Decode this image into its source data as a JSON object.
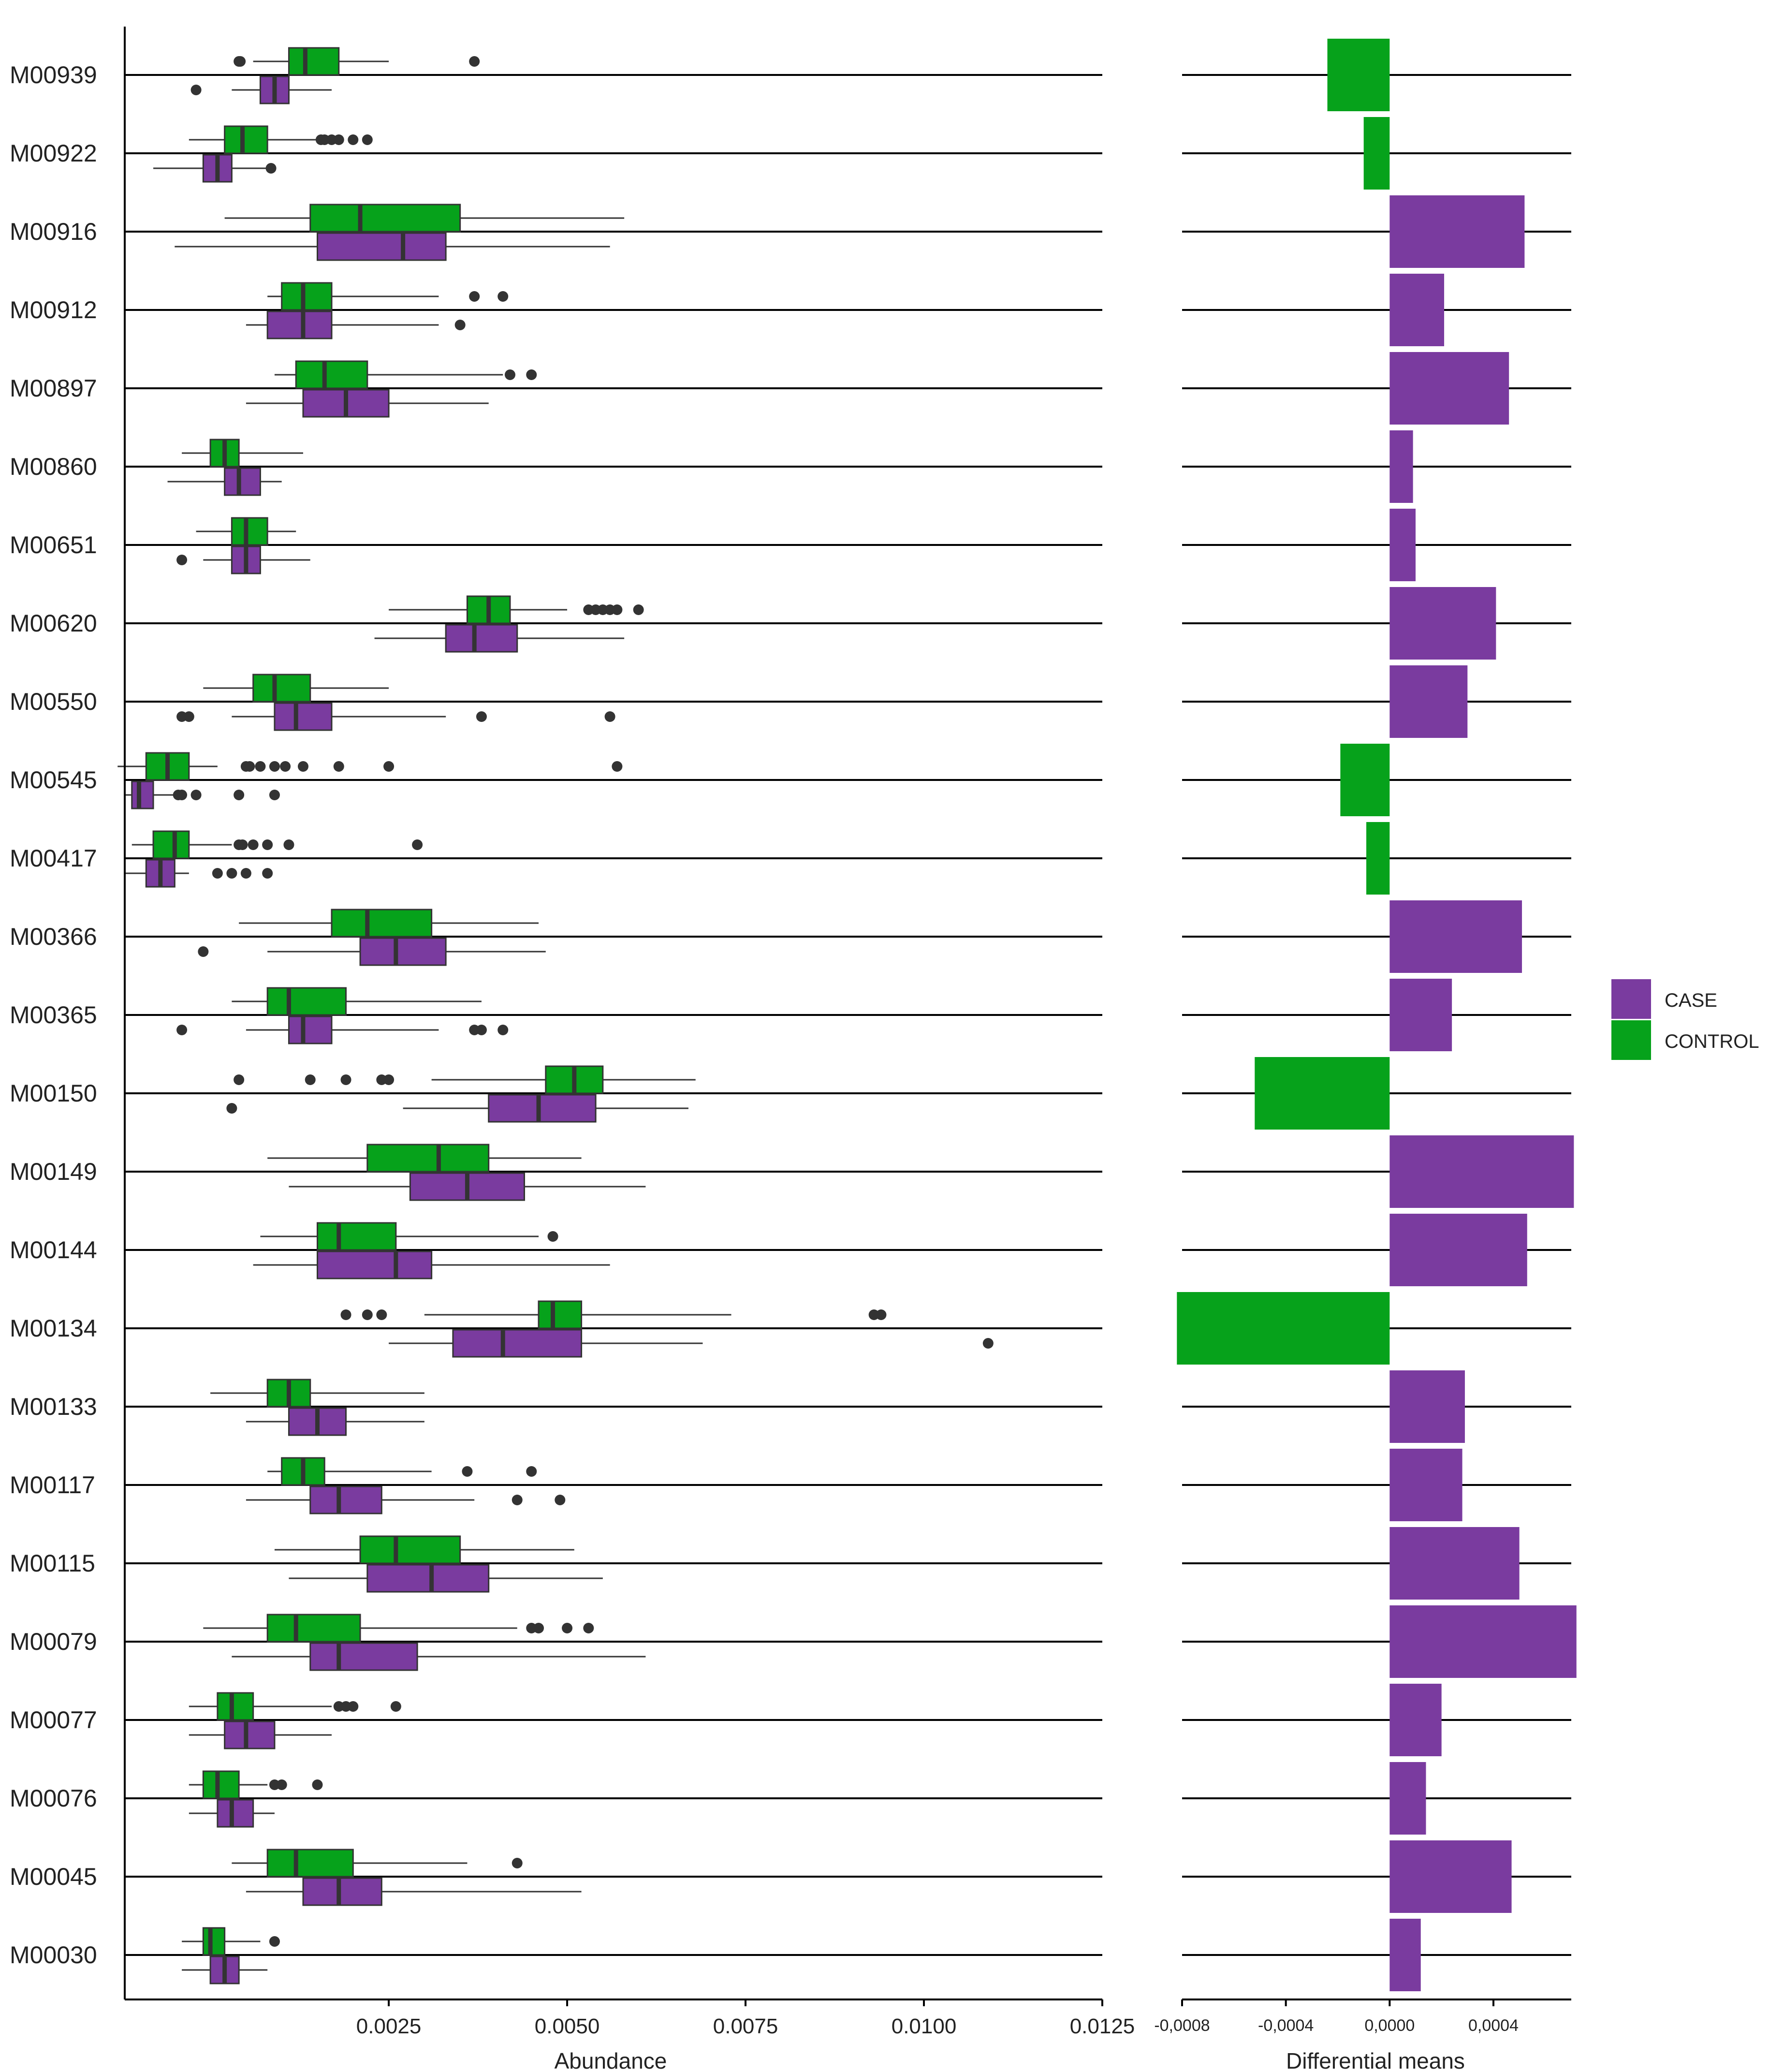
{
  "chart_data": {
    "type": "boxplot+bar",
    "categories": [
      "M00939",
      "M00922",
      "M00916",
      "M00912",
      "M00897",
      "M00860",
      "M00651",
      "M00620",
      "M00550",
      "M00545",
      "M00417",
      "M00366",
      "M00365",
      "M00150",
      "M00149",
      "M00144",
      "M00134",
      "M00133",
      "M00117",
      "M00115",
      "M00079",
      "M00077",
      "M00076",
      "M00045",
      "M00030"
    ],
    "colors": {
      "CASE": "#7a3b9f",
      "CONTROL": "#06a21b"
    },
    "legend": {
      "entries": [
        "CASE",
        "CONTROL"
      ],
      "position": "right"
    },
    "boxplot": {
      "xlabel": "Abundance",
      "xlim": [
        -0.0012,
        0.0125
      ],
      "xticks": [
        0.0025,
        0.005,
        0.0075,
        0.01,
        0.0125
      ],
      "xtick_labels": [
        "0.0025",
        "0.0050",
        "0.0075",
        "0.0100",
        "0.0125"
      ],
      "series": [
        {
          "name": "CONTROL",
          "boxes": [
            {
              "min": 0.0006,
              "q1": 0.0011,
              "median": 0.00133,
              "q3": 0.0018,
              "max": 0.0025,
              "outliers": [
                0.0004,
                0.00042,
                0.0037
              ]
            },
            {
              "min": -0.0003,
              "q1": 0.0002,
              "median": 0.00045,
              "q3": 0.0008,
              "max": 0.0015,
              "outliers": [
                0.00155,
                0.0016,
                0.0017,
                0.0018,
                0.002,
                0.0022
              ]
            },
            {
              "min": 0.0002,
              "q1": 0.0014,
              "median": 0.0021,
              "q3": 0.0035,
              "max": 0.0058,
              "outliers": []
            },
            {
              "min": 0.0008,
              "q1": 0.001,
              "median": 0.0013,
              "q3": 0.0017,
              "max": 0.0032,
              "outliers": [
                0.0037,
                0.0041
              ]
            },
            {
              "min": 0.0009,
              "q1": 0.0012,
              "median": 0.0016,
              "q3": 0.0022,
              "max": 0.0041,
              "outliers": [
                0.0042,
                0.0045
              ]
            },
            {
              "min": -0.0004,
              "q1": 0.0,
              "median": 0.0002,
              "q3": 0.0004,
              "max": 0.0013,
              "outliers": []
            },
            {
              "min": -0.0002,
              "q1": 0.0003,
              "median": 0.0005,
              "q3": 0.0008,
              "max": 0.0012,
              "outliers": []
            },
            {
              "min": 0.0025,
              "q1": 0.0036,
              "median": 0.0039,
              "q3": 0.0042,
              "max": 0.005,
              "outliers": [
                0.0053,
                0.0054,
                0.0055,
                0.0056,
                0.0057,
                0.006
              ]
            },
            {
              "min": -0.0001,
              "q1": 0.0006,
              "median": 0.0009,
              "q3": 0.0014,
              "max": 0.0025,
              "outliers": []
            },
            {
              "min": -0.0013,
              "q1": -0.0009,
              "median": -0.0006,
              "q3": -0.0003,
              "max": 0.0001,
              "outliers": [
                0.0005,
                0.00055,
                0.0007,
                0.0009,
                0.00105,
                0.0013,
                0.0018,
                0.0025,
                0.0057
              ]
            },
            {
              "min": -0.0011,
              "q1": -0.0008,
              "median": -0.0005,
              "q3": -0.0003,
              "max": 0.0003,
              "outliers": [
                0.0004,
                0.00045,
                0.0006,
                0.0008,
                0.0011,
                0.0029
              ]
            },
            {
              "min": 0.0004,
              "q1": 0.0017,
              "median": 0.0022,
              "q3": 0.0031,
              "max": 0.0046,
              "outliers": []
            },
            {
              "min": 0.0003,
              "q1": 0.0008,
              "median": 0.0011,
              "q3": 0.0019,
              "max": 0.0038,
              "outliers": []
            },
            {
              "min": 0.0031,
              "q1": 0.0047,
              "median": 0.0051,
              "q3": 0.0055,
              "max": 0.0068,
              "outliers": [
                0.0004,
                0.0014,
                0.0019,
                0.0024,
                0.0025
              ]
            },
            {
              "min": 0.0008,
              "q1": 0.0022,
              "median": 0.0032,
              "q3": 0.0039,
              "max": 0.0052,
              "outliers": []
            },
            {
              "min": 0.0007,
              "q1": 0.0015,
              "median": 0.0018,
              "q3": 0.0026,
              "max": 0.0046,
              "outliers": [
                0.0048
              ]
            },
            {
              "min": 0.003,
              "q1": 0.0046,
              "median": 0.0048,
              "q3": 0.0052,
              "max": 0.0073,
              "outliers": [
                0.0019,
                0.0022,
                0.0024,
                0.0093,
                0.0094
              ]
            },
            {
              "min": 0.0,
              "q1": 0.0008,
              "median": 0.0011,
              "q3": 0.0014,
              "max": 0.003,
              "outliers": []
            },
            {
              "min": 0.0008,
              "q1": 0.001,
              "median": 0.0013,
              "q3": 0.0016,
              "max": 0.0031,
              "outliers": [
                0.0036,
                0.0045
              ]
            },
            {
              "min": 0.0009,
              "q1": 0.0021,
              "median": 0.0026,
              "q3": 0.0035,
              "max": 0.0051,
              "outliers": []
            },
            {
              "min": -0.0001,
              "q1": 0.0008,
              "median": 0.0012,
              "q3": 0.0021,
              "max": 0.0043,
              "outliers": [
                0.0045,
                0.0046,
                0.005,
                0.0053
              ]
            },
            {
              "min": -0.0003,
              "q1": 0.0001,
              "median": 0.0003,
              "q3": 0.0006,
              "max": 0.0017,
              "outliers": [
                0.0018,
                0.0019,
                0.002,
                0.0026
              ]
            },
            {
              "min": -0.0003,
              "q1": -0.0001,
              "median": 0.0001,
              "q3": 0.0004,
              "max": 0.0008,
              "outliers": [
                0.0009,
                0.001,
                0.0015
              ]
            },
            {
              "min": 0.0003,
              "q1": 0.0008,
              "median": 0.0012,
              "q3": 0.002,
              "max": 0.0036,
              "outliers": [
                0.0043
              ]
            },
            {
              "min": -0.0004,
              "q1": -0.0001,
              "median": 0.0,
              "q3": 0.0002,
              "max": 0.0007,
              "outliers": [
                0.0009
              ]
            }
          ]
        },
        {
          "name": "CASE",
          "boxes": [
            {
              "min": 0.0003,
              "q1": 0.0007,
              "median": 0.0009,
              "q3": 0.0011,
              "max": 0.0017,
              "outliers": [
                -0.0002
              ]
            },
            {
              "min": -0.0008,
              "q1": -0.0001,
              "median": 0.0001,
              "q3": 0.0003,
              "max": 0.0008,
              "outliers": [
                0.00085
              ]
            },
            {
              "min": -0.0005,
              "q1": 0.0015,
              "median": 0.0027,
              "q3": 0.0033,
              "max": 0.0056,
              "outliers": []
            },
            {
              "min": 0.0005,
              "q1": 0.0008,
              "median": 0.0013,
              "q3": 0.0017,
              "max": 0.0032,
              "outliers": [
                0.0035
              ]
            },
            {
              "min": 0.0005,
              "q1": 0.0013,
              "median": 0.0019,
              "q3": 0.0025,
              "max": 0.0039,
              "outliers": []
            },
            {
              "min": -0.0006,
              "q1": 0.0002,
              "median": 0.0004,
              "q3": 0.0007,
              "max": 0.001,
              "outliers": []
            },
            {
              "min": -0.0001,
              "q1": 0.0003,
              "median": 0.0005,
              "q3": 0.0007,
              "max": 0.0014,
              "outliers": [
                -0.0004
              ]
            },
            {
              "min": 0.0023,
              "q1": 0.0033,
              "median": 0.0037,
              "q3": 0.0043,
              "max": 0.0058,
              "outliers": []
            },
            {
              "min": 0.0003,
              "q1": 0.0009,
              "median": 0.0012,
              "q3": 0.0017,
              "max": 0.0033,
              "outliers": [
                -0.0004,
                -0.0003,
                0.0038,
                0.0056
              ]
            },
            {
              "min": -0.0012,
              "q1": -0.0011,
              "median": -0.001,
              "q3": -0.0008,
              "max": -0.0005,
              "outliers": [
                -0.00045,
                -0.0004,
                -0.0002,
                0.0004,
                0.0009
              ]
            },
            {
              "min": -0.0012,
              "q1": -0.0009,
              "median": -0.0007,
              "q3": -0.0005,
              "max": -0.0003,
              "outliers": [
                0.0001,
                0.0003,
                0.0005,
                0.0008
              ]
            },
            {
              "min": 0.0008,
              "q1": 0.0021,
              "median": 0.0026,
              "q3": 0.0033,
              "max": 0.0047,
              "outliers": [
                -0.0001
              ]
            },
            {
              "min": 0.0005,
              "q1": 0.0011,
              "median": 0.0013,
              "q3": 0.0017,
              "max": 0.0032,
              "outliers": [
                -0.0004,
                0.0037,
                0.0038,
                0.0041
              ]
            },
            {
              "min": 0.0027,
              "q1": 0.0039,
              "median": 0.0046,
              "q3": 0.0054,
              "max": 0.0067,
              "outliers": [
                0.0003
              ]
            },
            {
              "min": 0.0011,
              "q1": 0.0028,
              "median": 0.0036,
              "q3": 0.0044,
              "max": 0.0061,
              "outliers": []
            },
            {
              "min": 0.0006,
              "q1": 0.0015,
              "median": 0.0026,
              "q3": 0.0031,
              "max": 0.0056,
              "outliers": []
            },
            {
              "min": 0.0025,
              "q1": 0.0034,
              "median": 0.0041,
              "q3": 0.0052,
              "max": 0.0069,
              "outliers": [
                0.0109
              ]
            },
            {
              "min": 0.0005,
              "q1": 0.0011,
              "median": 0.0015,
              "q3": 0.0019,
              "max": 0.003,
              "outliers": []
            },
            {
              "min": 0.0005,
              "q1": 0.0014,
              "median": 0.0018,
              "q3": 0.0024,
              "max": 0.0037,
              "outliers": [
                0.0043,
                0.0049
              ]
            },
            {
              "min": 0.0011,
              "q1": 0.0022,
              "median": 0.0031,
              "q3": 0.0039,
              "max": 0.0055,
              "outliers": []
            },
            {
              "min": 0.0003,
              "q1": 0.0014,
              "median": 0.0018,
              "q3": 0.0029,
              "max": 0.0061,
              "outliers": []
            },
            {
              "min": -0.0003,
              "q1": 0.0002,
              "median": 0.0005,
              "q3": 0.0009,
              "max": 0.0017,
              "outliers": []
            },
            {
              "min": -0.0003,
              "q1": 0.0001,
              "median": 0.0003,
              "q3": 0.0006,
              "max": 0.0009,
              "outliers": []
            },
            {
              "min": 0.0005,
              "q1": 0.0013,
              "median": 0.0018,
              "q3": 0.0024,
              "max": 0.0052,
              "outliers": []
            },
            {
              "min": -0.0004,
              "q1": 0.0,
              "median": 0.0002,
              "q3": 0.0004,
              "max": 0.0008,
              "outliers": []
            }
          ]
        }
      ]
    },
    "differential_means": {
      "xlabel": "Differential means",
      "xlim": [
        -0.0008,
        0.0007
      ],
      "xticks": [
        -0.0008,
        -0.0004,
        0.0,
        0.0004
      ],
      "xtick_labels": [
        "-0,0008",
        "-0,0004",
        "0,0000",
        "0,0004"
      ],
      "values": [
        -0.00024,
        -0.0001,
        0.00052,
        0.00021,
        0.00046,
        9e-05,
        0.0001,
        0.00041,
        0.0003,
        -0.00019,
        -9e-05,
        0.00051,
        0.00024,
        -0.00052,
        0.00071,
        0.00053,
        -0.00082,
        0.00029,
        0.00028,
        0.0005,
        0.00072,
        0.0002,
        0.00014,
        0.00047,
        0.00012
      ]
    }
  }
}
